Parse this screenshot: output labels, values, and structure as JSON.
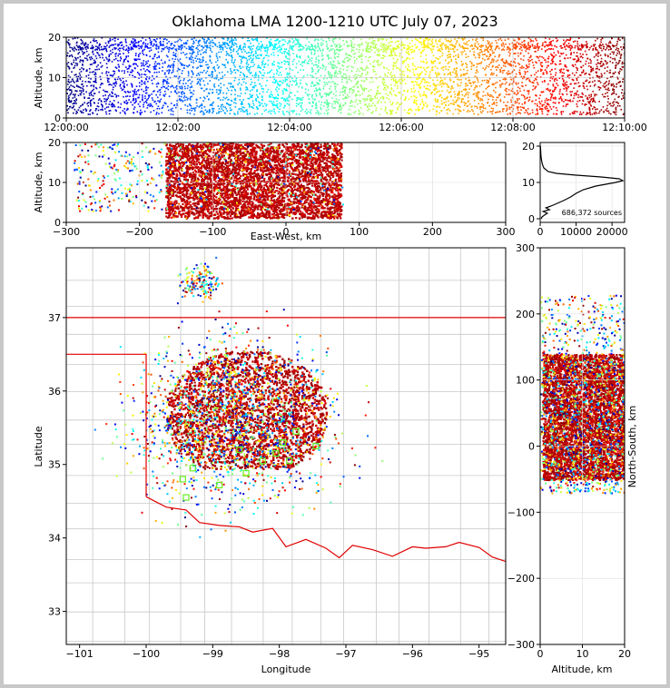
{
  "chart_data": [
    {
      "panel": "time-altitude",
      "type": "scatter",
      "title": "Oklahoma LMA 1200-1210 UTC July 07, 2023",
      "ylabel": "Altitude, km",
      "xlim_minutes": [
        0,
        10
      ],
      "ylim": [
        0,
        20
      ],
      "xticks": [
        "12:00:00",
        "12:02:00",
        "12:04:00",
        "12:06:00",
        "12:08:00",
        "12:10:00"
      ],
      "xtick_minutes": [
        0,
        2,
        4,
        6,
        8,
        10
      ],
      "yticks": [
        0,
        10,
        20
      ],
      "color_by": "time",
      "colormap": "jet",
      "grid": true
    },
    {
      "panel": "eastwest-altitude",
      "type": "scatter",
      "xlabel": "East-West, km",
      "ylabel": "Altitude, km",
      "xlim": [
        -300,
        300
      ],
      "ylim": [
        0,
        20
      ],
      "xticks": [
        -300,
        -200,
        -100,
        0,
        100,
        200,
        300
      ],
      "yticks": [
        0,
        10,
        20
      ],
      "dense_core_x": [
        -165,
        75
      ],
      "grid": true
    },
    {
      "panel": "altitude-histogram",
      "type": "line",
      "xlim": [
        0,
        23500
      ],
      "ylim": [
        -1,
        21
      ],
      "xticks": [
        0,
        10000,
        20000
      ],
      "yticks": [
        0,
        10,
        20
      ],
      "annotation": "686,372 sources",
      "profile": {
        "altitude": [
          0,
          0.5,
          1,
          1.5,
          2,
          2.5,
          3,
          3.5,
          4,
          5,
          6,
          7,
          8,
          9,
          10,
          10.5,
          11,
          11.5,
          12,
          12.5,
          13,
          14,
          15,
          16,
          17,
          18,
          19,
          20
        ],
        "count": [
          300,
          500,
          1200,
          2000,
          800,
          2600,
          1600,
          3000,
          4200,
          6500,
          8500,
          10000,
          12000,
          15500,
          21000,
          23000,
          22000,
          17000,
          10000,
          4500,
          2200,
          1000,
          600,
          400,
          250,
          180,
          120,
          80
        ]
      }
    },
    {
      "panel": "plan-view",
      "type": "scatter",
      "xlabel": "Longitude",
      "ylabel": "Latitude",
      "xlim": [
        -101.2,
        -94.6
      ],
      "ylim": [
        32.55,
        37.95
      ],
      "xticks": [
        -101,
        -100,
        -99,
        -98,
        -97,
        -96,
        -95
      ],
      "yticks": [
        33,
        34,
        35,
        36,
        37
      ],
      "state_border_color": "#e00000",
      "county_line_color": "#c8c8c8",
      "station_marker_color": "#66ee22",
      "storm_core": {
        "lon_range": [
          -99.7,
          -97.3
        ],
        "lat_range": [
          34.95,
          36.55
        ]
      }
    },
    {
      "panel": "altitude-northsouth",
      "type": "scatter",
      "xlabel": "Altitude, km",
      "ylabel": "North-South, km",
      "xlim": [
        0,
        20
      ],
      "ylim": [
        -300,
        300
      ],
      "xticks": [
        0,
        10,
        20
      ],
      "yticks": [
        -300,
        -200,
        -100,
        0,
        100,
        200,
        300
      ],
      "grid": true
    }
  ]
}
